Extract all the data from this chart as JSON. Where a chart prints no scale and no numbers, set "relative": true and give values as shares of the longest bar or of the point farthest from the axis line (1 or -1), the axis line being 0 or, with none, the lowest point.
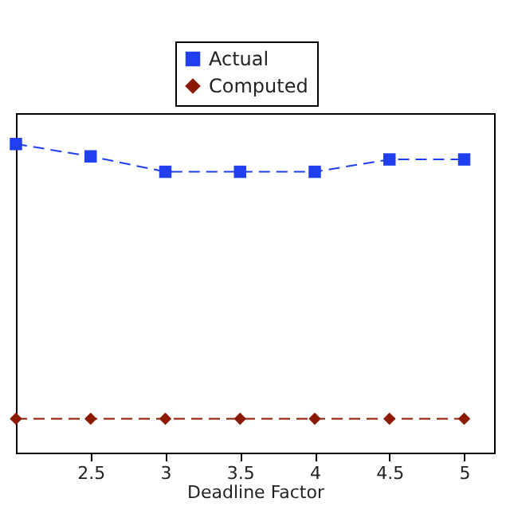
{
  "chart_data": {
    "type": "line",
    "xlabel": "Deadline Factor",
    "relative": true,
    "x": [
      2,
      2.5,
      3,
      3.5,
      4,
      4.5,
      5
    ],
    "xlim": [
      2,
      5.2
    ],
    "xticks": [
      2.5,
      3,
      3.5,
      4,
      4.5,
      5
    ],
    "series": [
      {
        "name": "Actual",
        "color": "#1f3ff0",
        "marker": "square",
        "values": [
          1,
          0.96,
          0.91,
          0.91,
          0.91,
          0.95,
          0.95
        ]
      },
      {
        "name": "Computed",
        "color": "#8b1a00",
        "marker": "diamond",
        "values": [
          0.11,
          0.11,
          0.11,
          0.11,
          0.11,
          0.11,
          0.11
        ]
      }
    ],
    "line_style": "dashed",
    "grid": false,
    "legend": "top"
  }
}
